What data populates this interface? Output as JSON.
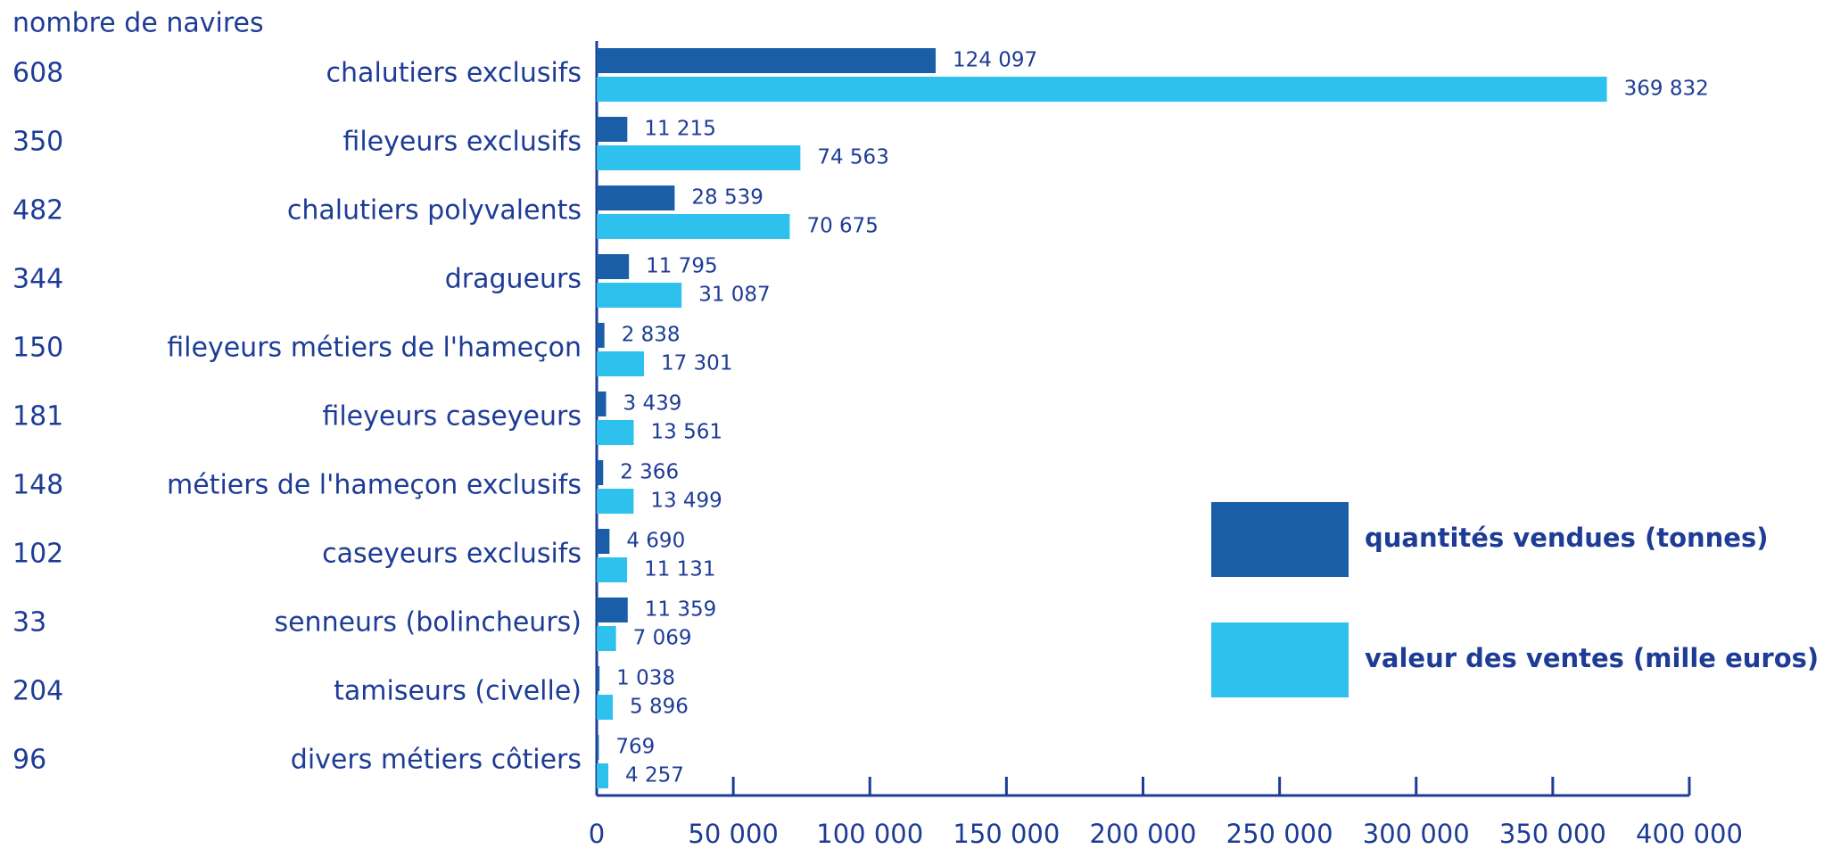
{
  "chart_data": {
    "type": "barh",
    "counts_label": "nombre de navires",
    "categories": [
      "chalutiers exclusifs",
      "fileyeurs exclusifs",
      "chalutiers polyvalents",
      "dragueurs",
      "fileyeurs métiers de l'hameçon",
      "fileyeurs caseyeurs",
      "métiers de l'hameçon exclusifs",
      "caseyeurs exclusifs",
      "senneurs (bolincheurs)",
      "tamiseurs (civelle)",
      "divers métiers côtiers"
    ],
    "counts": [
      608,
      350,
      482,
      344,
      150,
      181,
      148,
      102,
      33,
      204,
      96
    ],
    "series": [
      {
        "name": "quantités vendues (tonnes)",
        "color": "#1a5ea8",
        "values": [
          124097,
          11215,
          28539,
          11795,
          2838,
          3439,
          2366,
          4690,
          11359,
          1038,
          769
        ],
        "value_labels": [
          "124 097",
          "11 215",
          "28 539",
          "11 795",
          "2 838",
          "3 439",
          "2 366",
          "4 690",
          "11 359",
          "1 038",
          "769"
        ]
      },
      {
        "name": "valeur des ventes (mille euros)",
        "color": "#2ec1ee",
        "values": [
          369832,
          74563,
          70675,
          31087,
          17301,
          13561,
          13499,
          11131,
          7069,
          5896,
          4257
        ],
        "value_labels": [
          "369 832",
          "74 563",
          "70 675",
          "31 087",
          "17 301",
          "13 561",
          "13 499",
          "11 131",
          "7 069",
          "5 896",
          "4 257"
        ]
      }
    ],
    "xlim": [
      0,
      400000
    ],
    "xticks": [
      0,
      {
        "value": 50000,
        "label": "50 000"
      },
      {
        "value": 100000,
        "label": "100 000"
      },
      {
        "value": 150000,
        "label": "150 000"
      },
      {
        "value": 200000,
        "label": "200 000"
      },
      {
        "value": 250000,
        "label": "250 000"
      },
      {
        "value": 300000,
        "label": "300 000"
      },
      {
        "value": 350000,
        "label": "350 000"
      },
      {
        "value": 400000,
        "label": "400 000"
      }
    ],
    "legend": "right"
  }
}
